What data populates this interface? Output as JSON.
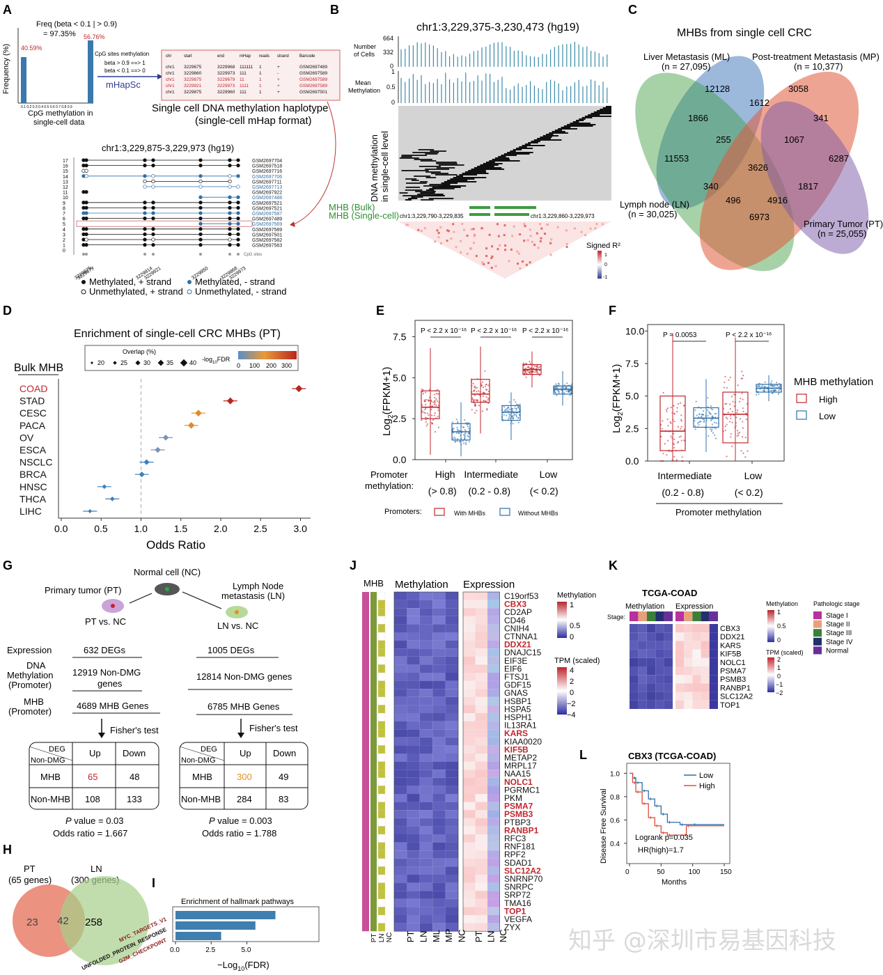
{
  "panels": [
    "A",
    "B",
    "C",
    "D",
    "E",
    "F",
    "G",
    "H",
    "I",
    "J",
    "K",
    "L"
  ],
  "panel_a": {
    "hist_title_line1": "Freq (beta < 0.1 | > 0.9)",
    "hist_title_line2": "= 97.35%",
    "hist_left_pct": "40.59%",
    "hist_right_pct": "56.76%",
    "hist_ylabel": "Frequency (%)",
    "hist_xlabel_1": "CpG methylation in",
    "hist_xlabel_2": "single-cell data",
    "hist_ticks": "0.1 0.2 0.3 0.4 0.5 0.6 0.7 0.8 0.9",
    "rule_title": "CpG sites methylation",
    "rule_1": "beta > 0.9  ==> 1",
    "rule_2": "beta < 0.1  ==> 0",
    "tool": "mHapSc",
    "table_headers": [
      "chr",
      "start",
      "end",
      "mHap",
      "reads",
      "strand",
      "Barcode"
    ],
    "table_rows": [
      [
        "chr1",
        "3229675",
        "3229968",
        "111111",
        "1",
        "+",
        "GSM2697489",
        "k"
      ],
      [
        "chr1",
        "3229860",
        "3229973",
        "111",
        "1",
        "-",
        "GSM2697589",
        "k"
      ],
      [
        "chr1",
        "3229875",
        "3229679",
        "11",
        "1",
        "+",
        "GSM2697589",
        "r"
      ],
      [
        "chr1",
        "3229921",
        "3229973",
        "1111",
        "1",
        "+",
        "GSM2697589",
        "r"
      ],
      [
        "chr1",
        "3229875",
        "3229960",
        "111",
        "1",
        "+",
        "GSM2697501",
        "k"
      ]
    ],
    "format_title_1": "Single cell DNA methylation haplotype",
    "format_title_2": "(single-cell mHap format)",
    "region": "chr1:3,229,875-3,229,973 (hg19)",
    "row_numbers": [
      "17",
      "16",
      "15",
      "14",
      "13",
      "12",
      "11",
      "10",
      "9",
      "8",
      "7",
      "6",
      "5",
      "4",
      "3",
      "2",
      "1",
      "0"
    ],
    "samples": [
      "GSM2697704",
      "GSM2697518",
      "GSM2697716",
      "GSM2697706",
      "GSM2697711",
      "GSM2697713",
      "GSM2697922",
      "GSM2697488",
      "GSM2697521",
      "GSM2697521",
      "GSM2697587",
      "GSM2697489",
      "GSM2697569",
      "GSM2697589",
      "GSM2697501",
      "GSM2697582",
      "GSM2697563"
    ],
    "positions": [
      "3229875",
      "3229879",
      "3229914",
      "3229921",
      "3229950",
      "3229968",
      "3229973"
    ],
    "cpg_label": "CpG sites",
    "legend": [
      "Methylated, + strand",
      "Methylated, - strand",
      "Unmethylated, + strand",
      "Unmethylated, - strand"
    ]
  },
  "panel_b": {
    "title": "chr1:3,229,375-3,230,473 (hg19)",
    "ncells_label_1": "Number",
    "ncells_label_2": "of Cells",
    "ncells_ticks": [
      "664",
      "332",
      "0"
    ],
    "meanmeth_label_1": "Mean",
    "meanmeth_label_2": "Methylation",
    "meanmeth_ticks": [
      "1",
      "0.5",
      "0"
    ],
    "heat_label_1": "DNA methylation",
    "heat_label_2": "in single-cell level",
    "mhb_bulk": "MHB (Bulk)",
    "mhb_sc": "MHB (Single-cell)",
    "region1": "chr1:3,229,790-3,229,835",
    "region2": "chr1:3,229,860-3,229,973",
    "ld_label": "Signed R²",
    "ld_ticks": [
      "1",
      "0",
      "-1"
    ]
  },
  "panel_c": {
    "title": "MHBs from single cell CRC",
    "ml": "Liver Metastasis (ML)",
    "ml_n": "(n = 27,095)",
    "mp": "Post-treatment Metastasis (MP)",
    "mp_n": "(n = 10,377)",
    "ln": "Lymph node (LN)",
    "ln_n": "(n = 30,025)",
    "pt": "Primary Tumor (PT)",
    "pt_n": "(n = 25,055)",
    "counts": [
      "12128",
      "3058",
      "1612",
      "1866",
      "341",
      "255",
      "1067",
      "11553",
      "3626",
      "6287",
      "340",
      "1817",
      "496",
      "4916",
      "6973"
    ]
  },
  "panel_d": {
    "title": "Enrichment of single-cell CRC MHBs (PT)",
    "bulk_label": "Bulk MHB",
    "overlap_label": "Overlap (%)",
    "overlap_sizes": [
      "20",
      "25",
      "30",
      "35",
      "40"
    ],
    "fdr_label": "-log",
    "fdr_sub": "10",
    "fdr_label2": "FDR",
    "fdr_ticks": [
      "0",
      "100",
      "200",
      "300"
    ],
    "xlabel": "Odds Ratio",
    "xticks": [
      "0.0",
      "0.5",
      "1.0",
      "1.5",
      "2.0",
      "2.5",
      "3.0"
    ]
  },
  "chart_data": [
    {
      "type": "scatter",
      "title": "Enrichment of single-cell CRC MHBs (PT)",
      "xlabel": "Odds Ratio",
      "ylabel": "Bulk MHB",
      "xlim": [
        0,
        3.2
      ],
      "categories": [
        "COAD",
        "STAD",
        "CESC",
        "PACA",
        "OV",
        "ESCA",
        "NSCLC",
        "BRCA",
        "HNSC",
        "THCA",
        "LIHC"
      ],
      "values": [
        2.98,
        2.12,
        1.72,
        1.63,
        1.31,
        1.21,
        1.07,
        1.01,
        0.54,
        0.64,
        0.36
      ],
      "fdr": [
        290,
        230,
        190,
        180,
        60,
        50,
        35,
        30,
        10,
        10,
        5
      ],
      "overlap": [
        32,
        31,
        30,
        30,
        27,
        27,
        26,
        26,
        22,
        22,
        20
      ]
    },
    {
      "type": "box",
      "ylabel": "Log2(FPKM+1)",
      "categories": [
        "High",
        "Intermediate",
        "Low"
      ],
      "category_sub": [
        "(> 0.8)",
        "(0.2 - 0.8)",
        "(< 0.2)"
      ],
      "group_label": "Promoter methylation:",
      "ylim": [
        0,
        8.5
      ],
      "series": [
        {
          "name": "With MHBs",
          "median": [
            3.2,
            4.0,
            5.5
          ],
          "q1": [
            2.5,
            3.5,
            5.2
          ],
          "q3": [
            4.2,
            4.9,
            5.8
          ],
          "lo": [
            0.3,
            1.6,
            4.4
          ],
          "hi": [
            6.8,
            6.9,
            6.6
          ]
        },
        {
          "name": "Without MHBs",
          "median": [
            1.7,
            2.9,
            4.3
          ],
          "q1": [
            1.2,
            2.4,
            4.0
          ],
          "q3": [
            2.2,
            3.3,
            4.5
          ],
          "lo": [
            0.2,
            1.2,
            3.3
          ],
          "hi": [
            3.5,
            4.1,
            5.4
          ]
        }
      ],
      "pvalues": [
        "P < 2.2  x 10⁻¹⁶",
        "P < 2.2  x 10⁻¹⁶",
        "P < 2.2  x 10⁻¹⁶"
      ],
      "legend_title": "Promoters:"
    },
    {
      "type": "box",
      "ylabel": "Log2(FPKM+1)",
      "categories": [
        "Intermediate",
        "Low"
      ],
      "category_sub": [
        "(0.2 - 0.8)",
        "(< 0.2)"
      ],
      "xlabel": "Promoter methylation",
      "ylim": [
        0,
        10.5
      ],
      "series": [
        {
          "name": "High",
          "median": [
            2.3,
            3.6
          ],
          "q1": [
            0.8,
            1.4
          ],
          "q3": [
            5.0,
            5.3
          ],
          "lo": [
            0,
            0
          ],
          "hi": [
            9.8,
            9.5
          ]
        },
        {
          "name": "Low",
          "median": [
            3.3,
            5.6
          ],
          "q1": [
            2.6,
            5.3
          ],
          "q3": [
            4.1,
            5.9
          ],
          "lo": [
            0.7,
            4.6
          ],
          "hi": [
            6.3,
            6.6
          ]
        }
      ],
      "pvalues": [
        "P = 0.0053",
        "P < 2.2  x 10⁻¹⁶"
      ],
      "legend_title": "MHB methylation"
    },
    {
      "type": "bar",
      "title": "Enrichment of hallmark pathways",
      "xlabel": "-Log10(FDR)",
      "categories": [
        "MYC_TARGETS_V1",
        "UNFOLDED_PROTEIN_RESPONSE",
        "G2M_CHECKPOINT"
      ],
      "values": [
        7.0,
        5.6,
        3.2
      ],
      "xlim": [
        0,
        10.5
      ]
    },
    {
      "type": "line",
      "title": "CBX3 (TCGA-COAD)",
      "xlabel": "Months",
      "ylabel": "Disease Free Survival",
      "xlim": [
        0,
        150
      ],
      "ylim": [
        0,
        1
      ],
      "series": [
        {
          "name": "Low",
          "x": [
            0,
            5,
            10,
            20,
            30,
            40,
            50,
            60,
            80,
            100,
            150
          ],
          "y": [
            1.0,
            0.96,
            0.92,
            0.85,
            0.78,
            0.72,
            0.65,
            0.58,
            0.56,
            0.56,
            0.56
          ]
        },
        {
          "name": "High",
          "x": [
            0,
            5,
            10,
            20,
            30,
            40,
            50,
            60,
            85,
            90,
            150
          ],
          "y": [
            1.0,
            0.92,
            0.84,
            0.74,
            0.62,
            0.55,
            0.49,
            0.47,
            0.47,
            0.55,
            0.55
          ]
        }
      ]
    }
  ],
  "panel_e": {
    "ylabel_a": "Log",
    "ylabel_sub": "2",
    "ylabel_b": "(FPKM+1)",
    "yticks": [
      "0.0",
      "2.5",
      "5.0",
      "7.5"
    ],
    "xgroup_1": "Promoter",
    "xgroup_2": "methylation:",
    "legend_title": "Promoters:",
    "legend_with": "With MHBs",
    "legend_without": "Without MHBs"
  },
  "panel_f": {
    "yticks": [
      "0.0",
      "2.5",
      "5.0",
      "7.5",
      "10.0"
    ],
    "legend_title": "MHB methylation",
    "legend_high": "High",
    "legend_low": "Low",
    "xlabel": "Promoter methylation"
  },
  "panel_g": {
    "nc": "Normal cell (NC)",
    "pt": "Primary tumor (PT)",
    "ln_1": "Lymph Node",
    "ln_2": "metastasis (LN)",
    "pt_vs": "PT vs. NC",
    "ln_vs": "LN vs. NC",
    "row_expr": "Expression",
    "row_dna_1": "DNA",
    "row_dna_2": "Methylation",
    "row_dna_3": "(Promoter)",
    "row_mhb_1": "MHB",
    "row_mhb_2": "(Promoter)",
    "pt_deg": "632  DEGs",
    "pt_dmg_1": "12919 Non-DMG",
    "pt_dmg_2": "genes",
    "pt_mhb": "4689 MHB Genes",
    "ln_deg": "1005  DEGs",
    "ln_dmg": "12814 Non-DMG genes",
    "ln_mhb": "6785 MHB Genes",
    "fisher": "Fisher's test",
    "tbl_deg": "DEG",
    "tbl_nondmg": "Non-DMG",
    "tbl_up": "Up",
    "tbl_down": "Down",
    "tbl_mhb": "MHB",
    "tbl_nonmhb": "Non-MHB",
    "pt_vals": [
      "65",
      "48",
      "108",
      "133"
    ],
    "ln_vals": [
      "300",
      "49",
      "284",
      "83"
    ],
    "pt_p": "value = 0.03",
    "pt_or": "Odds ratio = 1.667",
    "ln_p": "value = 0.003",
    "ln_or": "Odds ratio = 1.788",
    "p_letter": "P"
  },
  "panel_h": {
    "pt_1": "PT",
    "pt_2": "(65 genes)",
    "ln_1": "LN",
    "ln_2": "(300 genes)",
    "only_pt": "23",
    "both": "42",
    "only_ln": "258"
  },
  "panel_i": {
    "title": "Enrichment of hallmark pathways",
    "xlabel_a": "−Log",
    "xlabel_sub": "10",
    "xlabel_b": "(FDR)",
    "xticks": [
      "0.0",
      "2.5",
      "5.0"
    ]
  },
  "panel_j": {
    "mhb_label": "MHB",
    "meth_label": "Methylation",
    "expr_label": "Expression",
    "mhb_cols": [
      "PT",
      "LN",
      "NC"
    ],
    "meth_cols": [
      "PT",
      "LN",
      "ML",
      "MP",
      "NC"
    ],
    "expr_cols": [
      "PT",
      "LN",
      "NC"
    ],
    "genes": [
      "C19orf53",
      "CBX3",
      "CD2AP",
      "CD46",
      "CNIH4",
      "CTNNA1",
      "DDX21",
      "DNAJC15",
      "EIF3E",
      "EIF6",
      "FTSJ1",
      "GDF15",
      "GNAS",
      "HSBP1",
      "HSPA5",
      "HSPH1",
      "IL13RA1",
      "KARS",
      "KIAA0020",
      "KIF5B",
      "METAP2",
      "MRPL17",
      "NAA15",
      "NOLC1",
      "PGRMC1",
      "PKM",
      "PSMA7",
      "PSMB3",
      "PTBP3",
      "RANBP1",
      "RFC3",
      "RNF181",
      "RPF2",
      "SDAD1",
      "SLC12A2",
      "SNRNP70",
      "SNRPC",
      "SRP72",
      "TMA16",
      "TOP1",
      "VEGFA",
      "ZYX"
    ],
    "highlight": [
      "CBX3",
      "DDX21",
      "KARS",
      "KIF5B",
      "NOLC1",
      "PSMA7",
      "PSMB3",
      "RANBP1",
      "SLC12A2",
      "TOP1"
    ],
    "meth_legend": "Methylation",
    "meth_ticks": [
      "1",
      "0.5",
      "0"
    ],
    "tpm_legend": "TPM (scaled)",
    "tpm_ticks": [
      "4",
      "2",
      "0",
      "−2",
      "−4"
    ]
  },
  "panel_k": {
    "title": "TCGA-COAD",
    "meth_label": "Methylation",
    "expr_label": "Expression",
    "stage_label": "Stage:",
    "genes": [
      "CBX3",
      "DDX21",
      "KARS",
      "KIF5B",
      "NOLC1",
      "PSMA7",
      "PSMB3",
      "RANBP1",
      "SLC12A2",
      "TOP1"
    ],
    "meth_legend": "Methylation",
    "meth_ticks": [
      "1",
      "0.5",
      "0"
    ],
    "tpm_legend": "TPM (scaled)",
    "tpm_ticks": [
      "2",
      "1",
      "0",
      "−1",
      "−2"
    ],
    "stage_legend": "Pathologic stage",
    "stages": [
      "Stage I",
      "Stage II",
      "Stage III",
      "Stage IV",
      "Normal"
    ],
    "stage_colors": [
      "#b8319c",
      "#e8a07a",
      "#3c7f3a",
      "#23306b",
      "#6a2e9b"
    ]
  },
  "panel_l": {
    "title": "CBX3 (TCGA-COAD)",
    "ylabel": "Disease Free Survival",
    "xlabel": "Months",
    "yticks": [
      "0.4",
      "0.6",
      "0.8",
      "1.0"
    ],
    "xticks": [
      "0",
      "50",
      "100",
      "150"
    ],
    "legend_low": "Low",
    "legend_high": "High",
    "logrank": "Logrank p=0.035",
    "hr": "HR(high)=1.7"
  },
  "watermark": "知乎 @深圳市易基因科技",
  "colors": {
    "red": "#c0262d",
    "blue": "#2f6fa8",
    "green": "#3b9c3e",
    "olive": "#b8b73a",
    "pink": "#c8509a"
  }
}
